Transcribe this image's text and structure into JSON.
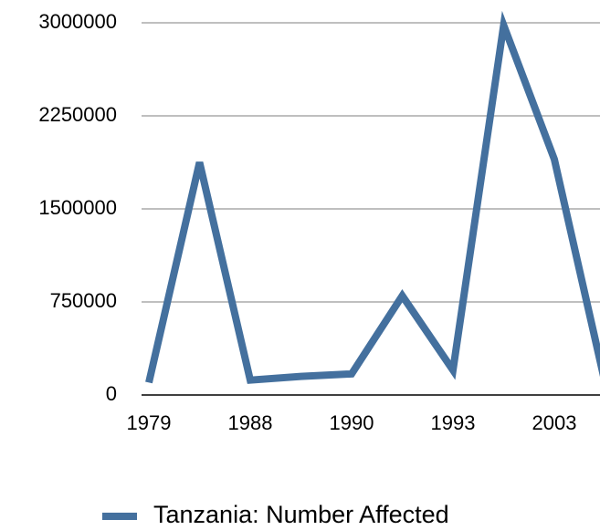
{
  "chart_data": {
    "type": "line",
    "categories": [
      "1979",
      null,
      "1988",
      null,
      "1990",
      null,
      "1993",
      null,
      "2003",
      null
    ],
    "series": [
      {
        "name": "Tanzania: Number Affected",
        "color": "#44709e",
        "values": [
          100000,
          1875000,
          120000,
          150000,
          170000,
          800000,
          200000,
          2980000,
          1900000,
          100000
        ]
      }
    ],
    "ylim": [
      0,
      3000000
    ],
    "yticks": [
      0,
      750000,
      1500000,
      2250000,
      3000000
    ],
    "grid": true,
    "legend": "bottom"
  }
}
